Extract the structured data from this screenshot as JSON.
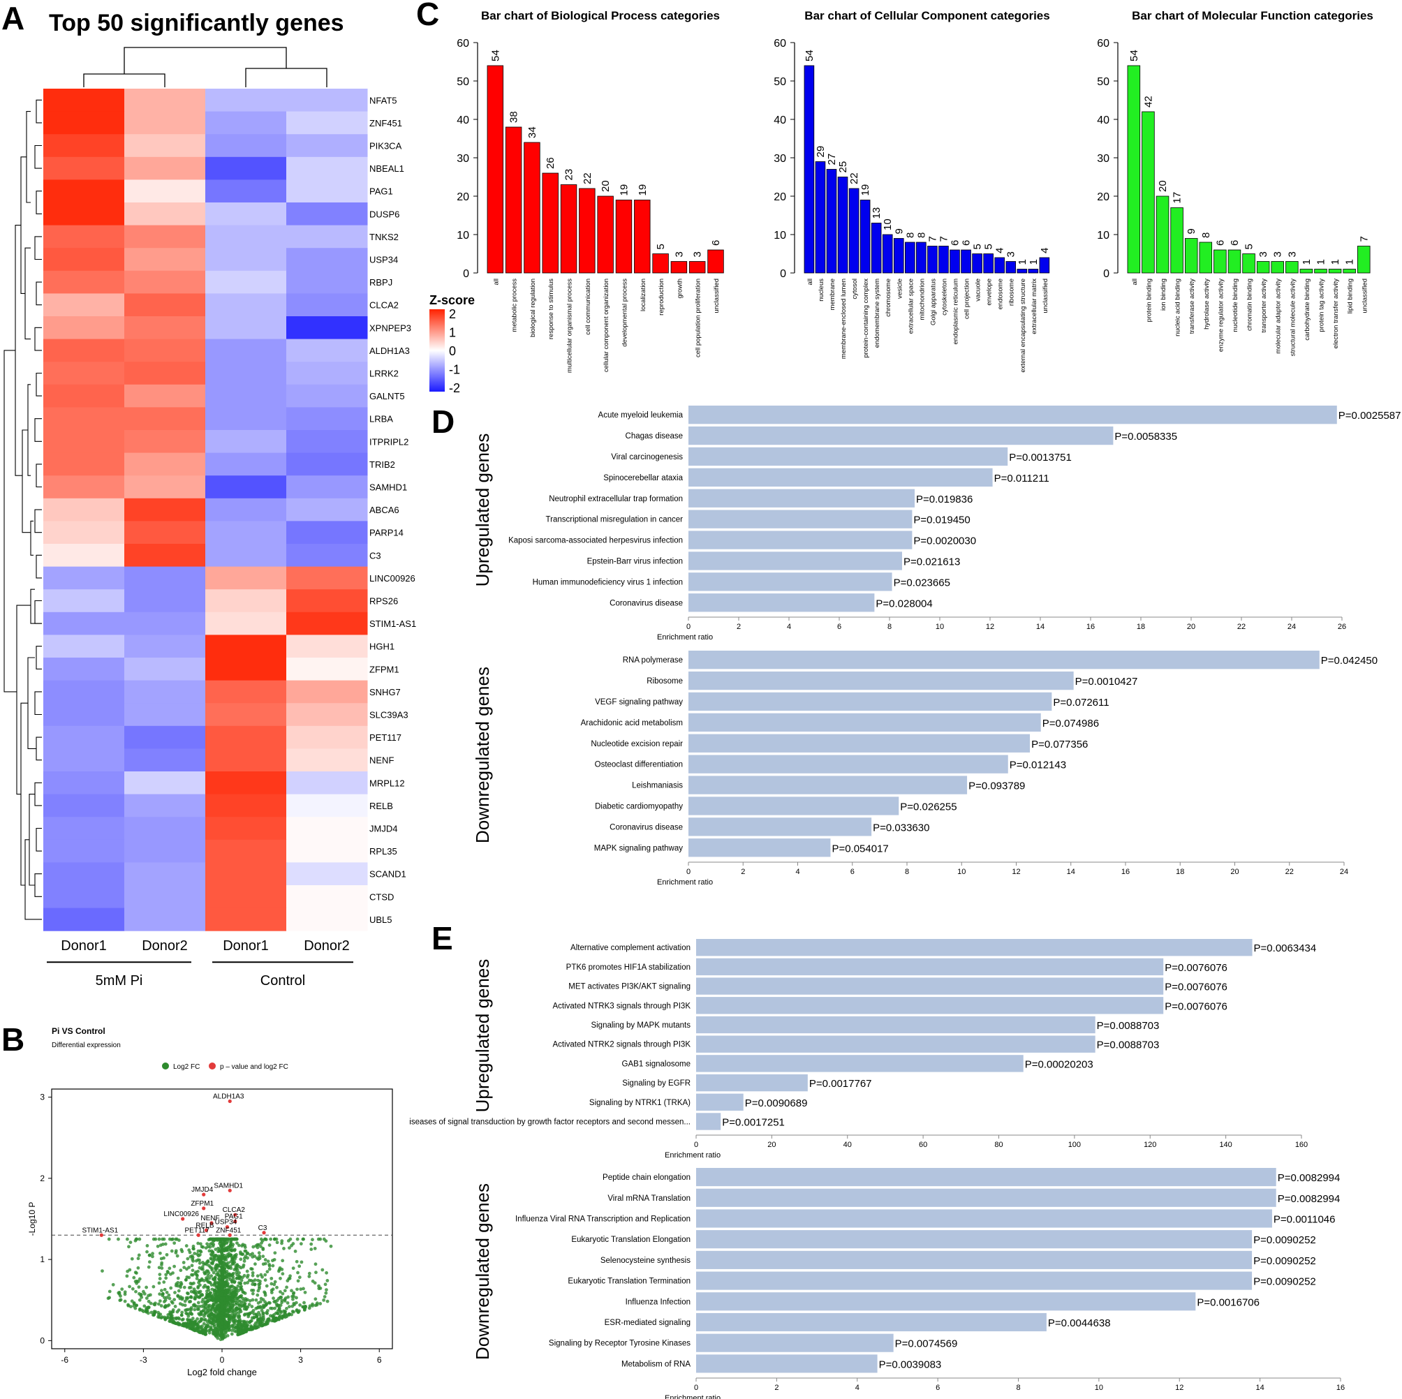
{
  "chart_data": [
    {
      "panel": "A",
      "type": "heatmap",
      "title": "Top 50 significantly genes",
      "columns": [
        "Donor1",
        "Donor2",
        "Donor1",
        "Donor2"
      ],
      "groups": [
        {
          "label": "5mM Pi",
          "columns": [
            0,
            1
          ]
        },
        {
          "label": "Control",
          "columns": [
            2,
            3
          ]
        }
      ],
      "legend_title": "Z-score",
      "legend_ticks": [
        "2",
        "1",
        "0",
        "-1",
        "-2"
      ],
      "color_range": [
        -2,
        2
      ],
      "low_color": "#1a1aff",
      "mid_color": "#ffffff",
      "high_color": "#ff2200",
      "rows": [
        {
          "gene": "NFAT5",
          "z": [
            1.9,
            0.7,
            -0.6,
            -0.6
          ]
        },
        {
          "gene": "ZNF451",
          "z": [
            1.9,
            0.7,
            -0.8,
            -0.4
          ]
        },
        {
          "gene": "PIK3CA",
          "z": [
            1.7,
            0.5,
            -0.9,
            -0.7
          ]
        },
        {
          "gene": "NBEAL1",
          "z": [
            1.5,
            0.8,
            -1.5,
            -0.4
          ]
        },
        {
          "gene": "PAG1",
          "z": [
            1.9,
            0.2,
            -1.2,
            -0.4
          ]
        },
        {
          "gene": "DUSP6",
          "z": [
            1.9,
            0.5,
            -0.5,
            -1.1
          ]
        },
        {
          "gene": "TNKS2",
          "z": [
            1.4,
            1.1,
            -0.6,
            -0.6
          ]
        },
        {
          "gene": "USP34",
          "z": [
            1.5,
            0.9,
            -0.6,
            -0.9
          ]
        },
        {
          "gene": "RBPJ",
          "z": [
            1.3,
            1.1,
            -0.4,
            -0.9
          ]
        },
        {
          "gene": "CLCA2",
          "z": [
            0.7,
            1.4,
            -0.6,
            -1.0
          ]
        },
        {
          "gene": "XPNPEP3",
          "z": [
            0.9,
            1.2,
            -0.6,
            -1.8
          ]
        },
        {
          "gene": "ALDH1A3",
          "z": [
            1.4,
            1.3,
            -0.9,
            -0.6
          ]
        },
        {
          "gene": "LRRK2",
          "z": [
            1.3,
            1.4,
            -0.9,
            -0.7
          ]
        },
        {
          "gene": "GALNT5",
          "z": [
            1.4,
            1.0,
            -0.9,
            -0.8
          ]
        },
        {
          "gene": "LRBA",
          "z": [
            1.3,
            1.3,
            -0.9,
            -1.0
          ]
        },
        {
          "gene": "ITPRIPL2",
          "z": [
            1.3,
            1.2,
            -0.7,
            -1.1
          ]
        },
        {
          "gene": "TRIB2",
          "z": [
            1.3,
            0.9,
            -0.9,
            -1.2
          ]
        },
        {
          "gene": "SAMHD1",
          "z": [
            1.1,
            0.8,
            -1.5,
            -0.9
          ]
        },
        {
          "gene": "ABCA6",
          "z": [
            0.5,
            1.7,
            -0.9,
            -0.7
          ]
        },
        {
          "gene": "PARP14",
          "z": [
            0.4,
            1.5,
            -0.8,
            -1.2
          ]
        },
        {
          "gene": "C3",
          "z": [
            0.2,
            1.7,
            -0.8,
            -1.1
          ]
        },
        {
          "gene": "LINC00926",
          "z": [
            -0.8,
            -1.0,
            0.8,
            1.3
          ]
        },
        {
          "gene": "RPS26",
          "z": [
            -0.5,
            -1.0,
            0.4,
            1.6
          ]
        },
        {
          "gene": "STIM1-AS1",
          "z": [
            -0.9,
            -0.9,
            0.3,
            1.8
          ]
        },
        {
          "gene": "HGH1",
          "z": [
            -0.5,
            -0.8,
            1.9,
            0.3
          ]
        },
        {
          "gene": "ZFPM1",
          "z": [
            -0.9,
            -0.6,
            1.9,
            0.1
          ]
        },
        {
          "gene": "SNHG7",
          "z": [
            -1.0,
            -0.8,
            1.4,
            0.8
          ]
        },
        {
          "gene": "SLC39A3",
          "z": [
            -1.0,
            -0.8,
            1.3,
            0.6
          ]
        },
        {
          "gene": "PET117",
          "z": [
            -0.9,
            -1.2,
            1.5,
            0.4
          ]
        },
        {
          "gene": "NENF",
          "z": [
            -0.9,
            -1.1,
            1.5,
            0.3
          ]
        },
        {
          "gene": "MRPL12",
          "z": [
            -1.0,
            -0.4,
            1.8,
            -0.4
          ]
        },
        {
          "gene": "RELB",
          "z": [
            -1.1,
            -0.8,
            1.7,
            -0.1
          ]
        },
        {
          "gene": "JMJD4",
          "z": [
            -1.0,
            -0.9,
            1.6,
            0.05
          ]
        },
        {
          "gene": "RPL35",
          "z": [
            -1.0,
            -0.9,
            1.5,
            0.05
          ]
        },
        {
          "gene": "SCAND1",
          "z": [
            -1.1,
            -0.8,
            1.5,
            -0.3
          ]
        },
        {
          "gene": "CTSD",
          "z": [
            -1.1,
            -0.8,
            1.5,
            0.05
          ]
        },
        {
          "gene": "UBL5",
          "z": [
            -1.3,
            -0.8,
            1.5,
            0.05
          ]
        }
      ]
    },
    {
      "panel": "B",
      "type": "scatter",
      "title": "Pi VS Control",
      "subtitle": "Differential expression",
      "xlabel": "Log2 fold change",
      "ylabel": "-Log10 P",
      "xlim": [
        -6.5,
        6.5
      ],
      "ylim": [
        -0.1,
        3.1
      ],
      "xticks": [
        -6,
        -3,
        0,
        3,
        6
      ],
      "yticks": [
        0,
        1,
        2,
        3
      ],
      "threshold_y": 1.3,
      "legend": [
        {
          "label": "Log2 FC",
          "color": "#2e8b2e"
        },
        {
          "label": "p – value and log2 FC",
          "color": "#e23b3b"
        }
      ],
      "labeled_points": [
        {
          "label": "ALDH1A3",
          "x": 0.3,
          "y": 2.95
        },
        {
          "label": "SAMHD1",
          "x": 0.3,
          "y": 1.85
        },
        {
          "label": "JMJD4",
          "x": -0.7,
          "y": 1.8
        },
        {
          "label": "ZFPM1",
          "x": -0.7,
          "y": 1.63
        },
        {
          "label": "LINC00926",
          "x": -1.5,
          "y": 1.5
        },
        {
          "label": "CLCA2",
          "x": 0.5,
          "y": 1.55
        },
        {
          "label": "PAG1",
          "x": 0.5,
          "y": 1.47
        },
        {
          "label": "NENF",
          "x": -0.4,
          "y": 1.45
        },
        {
          "label": "USP34",
          "x": 0.2,
          "y": 1.4
        },
        {
          "label": "RELB",
          "x": -0.6,
          "y": 1.36
        },
        {
          "label": "ZNF451",
          "x": 0.3,
          "y": 1.3
        },
        {
          "label": "PET117",
          "x": -0.9,
          "y": 1.3
        },
        {
          "label": "C3",
          "x": 1.6,
          "y": 1.33
        },
        {
          "label": "STIM1-AS1",
          "x": -4.6,
          "y": 1.3
        }
      ]
    },
    {
      "panel": "C",
      "type": "bar",
      "title": "Bar chart of Biological Process categories",
      "color": "#ff0000",
      "ylim": [
        0,
        60
      ],
      "yticks": [
        0,
        10,
        20,
        30,
        40,
        50,
        60
      ],
      "categories": [
        "all",
        "metabolic process",
        "biological regulation",
        "response to stimulus",
        "multicellular organismal process",
        "cell communication",
        "cellular component organization",
        "developmental process",
        "localization",
        "reproduction",
        "growth",
        "cell population proliferation",
        "unclassified"
      ],
      "values": [
        54,
        38,
        34,
        26,
        23,
        22,
        20,
        19,
        19,
        5,
        3,
        3,
        6
      ]
    },
    {
      "panel": "C",
      "type": "bar",
      "title": "Bar chart of Cellular Component categories",
      "color": "#0000ee",
      "ylim": [
        0,
        60
      ],
      "yticks": [
        0,
        10,
        20,
        30,
        40,
        50,
        60
      ],
      "categories": [
        "all",
        "nucleus",
        "membrane",
        "membrane-enclosed lumen",
        "cytosol",
        "protein-containing complex",
        "endomembrane system",
        "chromosome",
        "vesicle",
        "extracellular space",
        "mitochondrion",
        "Golgi apparatus",
        "cytoskeleton",
        "endoplasmic reticulum",
        "cell projection",
        "vacuole",
        "envelope",
        "endosome",
        "ribosome",
        "external encapsulating structure",
        "extracellular matrix",
        "unclassified"
      ],
      "values": [
        54,
        29,
        27,
        25,
        22,
        19,
        13,
        10,
        9,
        8,
        8,
        7,
        7,
        6,
        6,
        5,
        5,
        4,
        3,
        1,
        1,
        4
      ]
    },
    {
      "panel": "C",
      "type": "bar",
      "title": "Bar chart of Molecular Function categories",
      "color": "#22ee22",
      "ylim": [
        0,
        60
      ],
      "yticks": [
        0,
        10,
        20,
        30,
        40,
        50,
        60
      ],
      "categories": [
        "all",
        "protein binding",
        "ion binding",
        "nucleic acid binding",
        "transferase activity",
        "hydrolase activity",
        "enzyme regulator activity",
        "nucleotide binding",
        "chromatin binding",
        "transporter activity",
        "molecular adaptor activity",
        "structural molecule activity",
        "carbohydrate binding",
        "protein tag activity",
        "electron transfer activity",
        "lipid binding",
        "unclassified"
      ],
      "values": [
        54,
        42,
        20,
        17,
        9,
        8,
        6,
        6,
        5,
        3,
        3,
        3,
        1,
        1,
        1,
        1,
        7
      ]
    },
    {
      "panel": "D",
      "type": "bar",
      "orientation": "horizontal",
      "group": "Upregulated genes",
      "xlabel": "Enrichment ratio",
      "xlim": [
        0,
        26
      ],
      "xticks": [
        0,
        2,
        4,
        6,
        8,
        10,
        12,
        14,
        16,
        18,
        20,
        22,
        24,
        26
      ],
      "color": "#b3c4de",
      "categories": [
        "Acute myeloid leukemia",
        "Chagas disease",
        "Viral carcinogenesis",
        "Spinocerebellar ataxia",
        "Neutrophil extracellular trap formation",
        "Transcriptional misregulation in cancer",
        "Kaposi sarcoma-associated herpesvirus infection",
        "Epstein-Barr virus infection",
        "Human immunodeficiency virus 1 infection",
        "Coronavirus disease"
      ],
      "values": [
        25.8,
        16.9,
        12.7,
        12.1,
        9.0,
        8.9,
        8.9,
        8.5,
        8.1,
        7.4
      ],
      "p_labels": [
        "P=0.0025587",
        "P=0.0058335",
        "P=0.0013751",
        "P=0.011211",
        "P=0.019836",
        "P=0.019450",
        "P=0.0020030",
        "P=0.021613",
        "P=0.023665",
        "P=0.028004"
      ]
    },
    {
      "panel": "D",
      "type": "bar",
      "orientation": "horizontal",
      "group": "Downregulated genes",
      "xlabel": "Enrichment ratio",
      "xlim": [
        0,
        24
      ],
      "xticks": [
        0,
        2,
        4,
        6,
        8,
        10,
        12,
        14,
        16,
        18,
        20,
        22,
        24
      ],
      "color": "#b3c4de",
      "categories": [
        "RNA polymerase",
        "Ribosome",
        "VEGF signaling pathway",
        "Arachidonic acid metabolism",
        "Nucleotide excision repair",
        "Osteoclast differentiation",
        "Leishmaniasis",
        "Diabetic cardiomyopathy",
        "Coronavirus disease",
        "MAPK signaling pathway"
      ],
      "values": [
        23.1,
        14.1,
        13.3,
        12.9,
        12.5,
        11.7,
        10.2,
        7.7,
        6.7,
        5.2
      ],
      "p_labels": [
        "P=0.042450",
        "P=0.0010427",
        "P=0.072611",
        "P=0.074986",
        "P=0.077356",
        "P=0.012143",
        "P=0.093789",
        "P=0.026255",
        "P=0.033630",
        "P=0.054017"
      ]
    },
    {
      "panel": "E",
      "type": "bar",
      "orientation": "horizontal",
      "group": "Upregulated genes",
      "xlabel": "Enrichment ratio",
      "xlim": [
        0,
        160
      ],
      "xticks": [
        0,
        20,
        40,
        60,
        80,
        100,
        120,
        140,
        160
      ],
      "color": "#b3c4de",
      "categories": [
        "Alternative complement activation",
        "PTK6 promotes HIF1A stabilization",
        "MET activates PI3K/AKT signaling",
        "Activated NTRK3 signals through PI3K",
        "Signaling by MAPK mutants",
        "Activated NTRK2 signals through PI3K",
        "GAB1 signalosome",
        "Signaling by EGFR",
        "Signaling by NTRK1 (TRKA)",
        "iseases of signal transduction by growth factor receptors and second messen..."
      ],
      "values": [
        147,
        123.5,
        123.5,
        123.5,
        105.5,
        105.5,
        86.5,
        29.5,
        12.5,
        6.5
      ],
      "p_labels": [
        "P=0.0063434",
        "P=0.0076076",
        "P=0.0076076",
        "P=0.0076076",
        "P=0.0088703",
        "P=0.0088703",
        "P=0.00020203",
        "P=0.0017767",
        "P=0.0090689",
        "P=0.0017251"
      ]
    },
    {
      "panel": "E",
      "type": "bar",
      "orientation": "horizontal",
      "group": "Downregulated genes",
      "xlabel": "Enrichment ratio",
      "xlim": [
        0,
        16
      ],
      "xticks": [
        0,
        2,
        4,
        6,
        8,
        10,
        12,
        14,
        16
      ],
      "color": "#b3c4de",
      "categories": [
        "Peptide chain elongation",
        "Viral mRNA Translation",
        "Influenza Viral RNA Transcription and Replication",
        "Eukaryotic Translation Elongation",
        "Selenocysteine synthesis",
        "Eukaryotic Translation Termination",
        "Influenza Infection",
        "ESR-mediated signaling",
        "Signaling by Receptor Tyrosine Kinases",
        "Metabolism of RNA"
      ],
      "values": [
        14.4,
        14.4,
        14.3,
        13.8,
        13.8,
        13.8,
        12.4,
        8.7,
        4.9,
        4.5
      ],
      "p_labels": [
        "P=0.0082994",
        "P=0.0082994",
        "P=0.0011046",
        "P=0.0090252",
        "P=0.0090252",
        "P=0.0090252",
        "P=0.0016706",
        "P=0.0044638",
        "P=0.0074569",
        "P=0.0039083"
      ]
    }
  ],
  "panel_letters": [
    "A",
    "B",
    "C",
    "D",
    "E"
  ]
}
